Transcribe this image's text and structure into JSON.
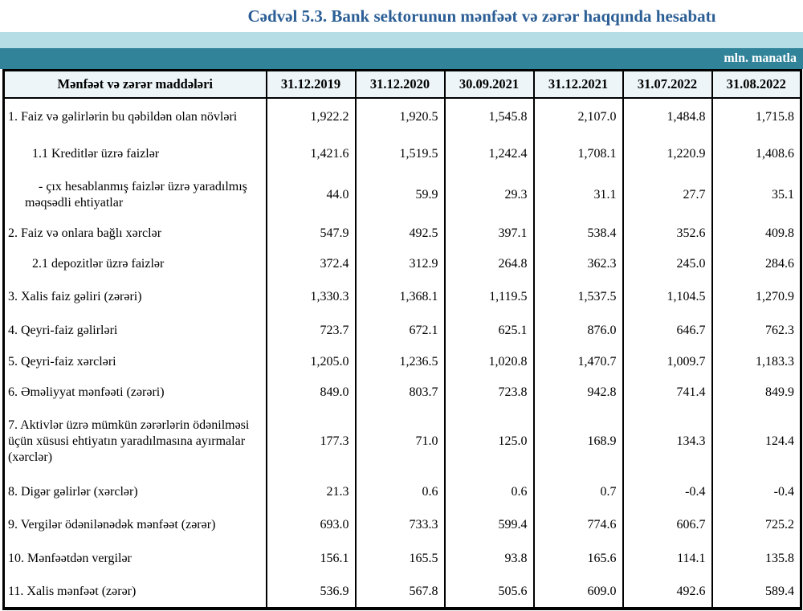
{
  "title": "Cədvəl 5.3. Bank sektorunun mənfəət və zərər haqqında hesabatı",
  "unit_label": "mln. manatla",
  "colors": {
    "title_text": "#2b5e95",
    "band_light": "#b5dde6",
    "band_teal": "#31839a",
    "header_bg": "#edf5f8",
    "border": "#000000"
  },
  "table": {
    "header": [
      "Mənfəət və zərər maddələri",
      "31.12.2019",
      "31.12.2020",
      "30.09.2021",
      "31.12.2021",
      "31.07.2022",
      "31.08.2022"
    ],
    "rows": [
      {
        "label": "1. Faiz və gəlirlərin bu qəbildən olan növləri",
        "indent": "none",
        "values": [
          "1,922.2",
          "1,920.5",
          "1,545.8",
          "2,107.0",
          "1,484.8",
          "1,715.8"
        ]
      },
      {
        "label": "1.1 Kreditlər üzrə faizlər",
        "indent": "sub",
        "values": [
          "1,421.6",
          "1,519.5",
          "1,242.4",
          "1,708.1",
          "1,220.9",
          "1,408.6"
        ]
      },
      {
        "label": "-  çıx hesablanmış faizlər üzrə yaradılmış məqsədli ehtiyatlar",
        "indent": "dash",
        "values": [
          "44.0",
          "59.9",
          "29.3",
          "31.1",
          "27.7",
          "35.1"
        ]
      },
      {
        "label": "2. Faiz və onlara bağlı xərclər",
        "indent": "none",
        "values": [
          "547.9",
          "492.5",
          "397.1",
          "538.4",
          "352.6",
          "409.8"
        ]
      },
      {
        "label": "2.1 depozitlər üzrə faizlər",
        "indent": "sub",
        "values": [
          "372.4",
          "312.9",
          "264.8",
          "362.3",
          "245.0",
          "284.6"
        ]
      },
      {
        "label": "3. Xalis faiz gəliri (zərəri)",
        "indent": "none",
        "values": [
          "1,330.3",
          "1,368.1",
          "1,119.5",
          "1,537.5",
          "1,104.5",
          "1,270.9"
        ]
      },
      {
        "label": "4. Qeyri-faiz gəlirləri",
        "indent": "none",
        "values": [
          "723.7",
          "672.1",
          "625.1",
          "876.0",
          "646.7",
          "762.3"
        ]
      },
      {
        "label": "5. Qeyri-faiz xərcləri",
        "indent": "none",
        "values": [
          "1,205.0",
          "1,236.5",
          "1,020.8",
          "1,470.7",
          "1,009.7",
          "1,183.3"
        ]
      },
      {
        "label": "6. Əməliyyat mənfəəti (zərəri)",
        "indent": "none",
        "values": [
          "849.0",
          "803.7",
          "723.8",
          "942.8",
          "741.4",
          "849.9"
        ]
      },
      {
        "label": "7. Aktivlər üzrə mümkün zərərlərin ödənilməsi üçün xüsusi ehtiyatın yaradılmasına ayırmalar (xərclər)",
        "indent": "none",
        "values": [
          "177.3",
          "71.0",
          "125.0",
          "168.9",
          "134.3",
          "124.4"
        ]
      },
      {
        "label": "8. Digər gəlirlər (xərclər)",
        "indent": "none",
        "values": [
          "21.3",
          "0.6",
          "0.6",
          "0.7",
          "-0.4",
          "-0.4"
        ]
      },
      {
        "label": "9. Vergilər ödənilənədək mənfəət (zərər)",
        "indent": "none",
        "values": [
          "693.0",
          "733.3",
          "599.4",
          "774.6",
          "606.7",
          "725.2"
        ]
      },
      {
        "label": "10. Mənfəətdən vergilər",
        "indent": "none",
        "values": [
          "156.1",
          "165.5",
          "93.8",
          "165.6",
          "114.1",
          "135.8"
        ]
      },
      {
        "label": "11. Xalis mənfəət (zərər)",
        "indent": "none",
        "values": [
          "536.9",
          "567.8",
          "505.6",
          "609.0",
          "492.6",
          "589.4"
        ]
      }
    ]
  }
}
